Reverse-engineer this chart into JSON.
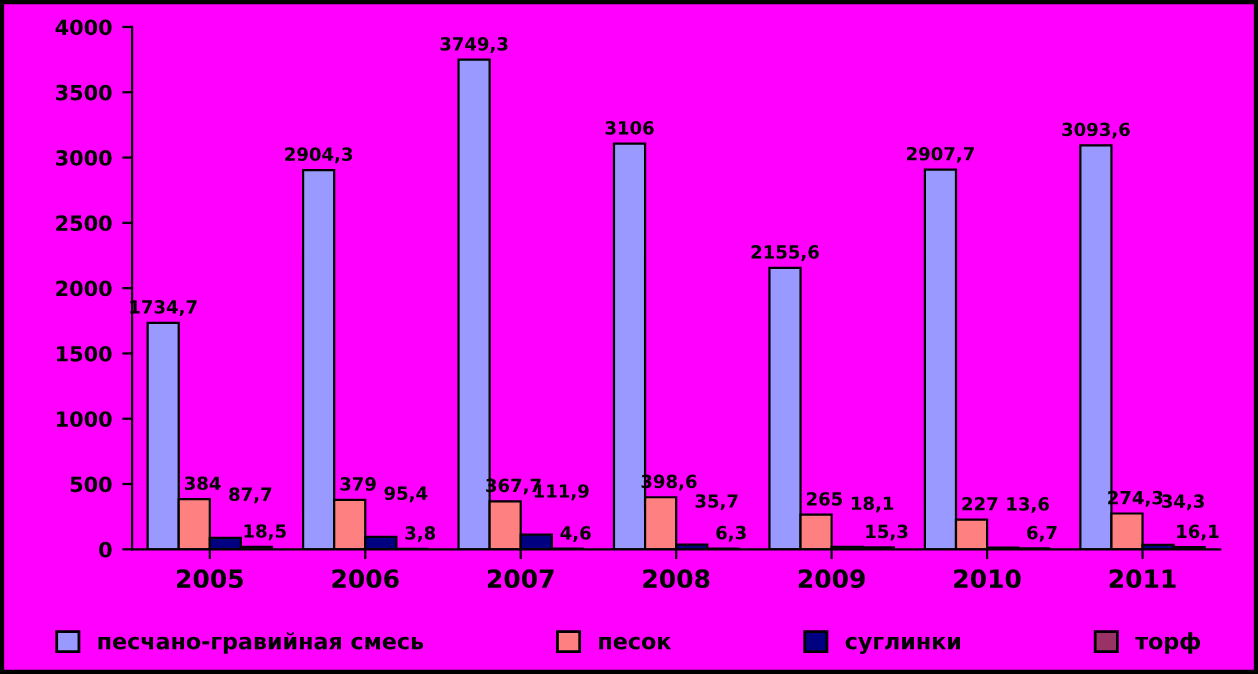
{
  "chart_data": {
    "type": "bar",
    "categories": [
      "2005",
      "2006",
      "2007",
      "2008",
      "2009",
      "2010",
      "2011"
    ],
    "series": [
      {
        "name": "песчано-гравийная смесь",
        "color": "#9999ff",
        "values": [
          1734.7,
          2904.3,
          3749.3,
          3106,
          2155.6,
          2907.7,
          3093.6
        ],
        "value_labels": [
          "1734,7",
          "2904,3",
          "3749,3",
          "3106",
          "2155,6",
          "2907,7",
          "3093,6"
        ]
      },
      {
        "name": "песок",
        "color": "#ff8080",
        "values": [
          384,
          379,
          367.7,
          398.6,
          265,
          227,
          274.3
        ],
        "value_labels": [
          "384",
          "379",
          "367,7",
          "398,6",
          "265",
          "227",
          "274,3"
        ]
      },
      {
        "name": "суглинки",
        "color": "#000080",
        "values": [
          87.7,
          95.4,
          111.9,
          35.7,
          18.1,
          13.6,
          34.3
        ],
        "value_labels": [
          "87,7",
          "95,4",
          "111,9",
          "35,7",
          "18,1",
          "13,6",
          "34,3"
        ]
      },
      {
        "name": "торф",
        "color": "#993366",
        "values": [
          18.5,
          3.8,
          4.6,
          6.3,
          15.3,
          6.7,
          16.1
        ],
        "value_labels": [
          "18,5",
          "3,8",
          "4,6",
          "6,3",
          "15,3",
          "6,7",
          "16,1"
        ]
      }
    ],
    "ylim": [
      0,
      4000
    ],
    "yticks": [
      0,
      500,
      1000,
      1500,
      2000,
      2500,
      3000,
      3500,
      4000
    ],
    "grid": false,
    "legend": "bottom"
  }
}
